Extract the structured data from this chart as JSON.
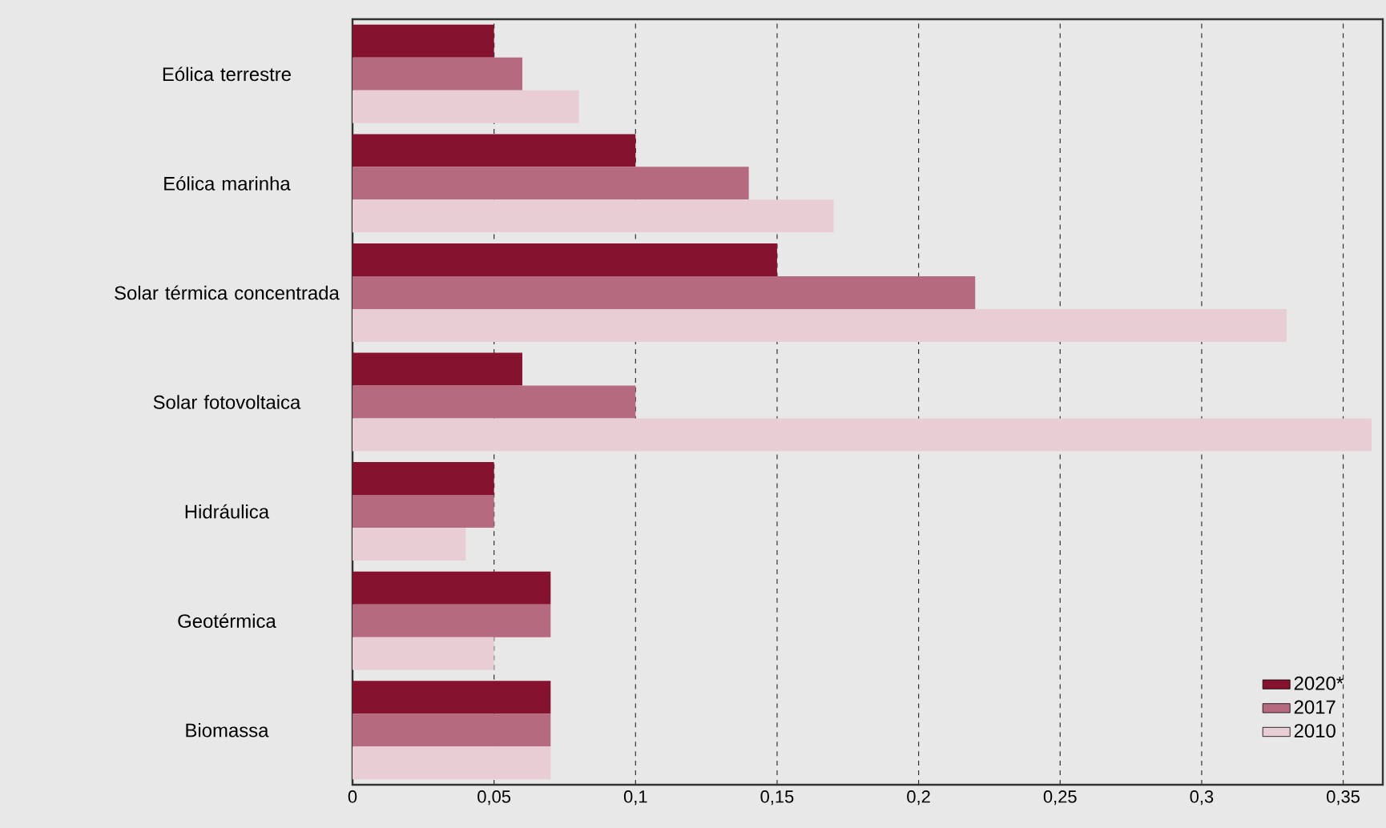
{
  "chart_data": {
    "type": "bar",
    "orientation": "horizontal",
    "categories": [
      "Eólica terrestre",
      "Eólica marinha",
      "Solar térmica concentrada",
      "Solar fotovoltaica",
      "Hidráulica",
      "Geotérmica",
      "Biomassa"
    ],
    "series": [
      {
        "name": "2020*",
        "color": "#85132f",
        "values": [
          0.05,
          0.1,
          0.15,
          0.06,
          0.05,
          0.07,
          0.07
        ]
      },
      {
        "name": "2017",
        "color": "#b56a7f",
        "values": [
          0.06,
          0.14,
          0.22,
          0.1,
          0.05,
          0.07,
          0.07
        ]
      },
      {
        "name": "2010",
        "color": "#e8cdd5",
        "values": [
          0.08,
          0.17,
          0.33,
          0.36,
          0.04,
          0.05,
          0.07
        ]
      }
    ],
    "xlim": [
      0,
      0.364
    ],
    "xticks": [
      0,
      {
        "value": 0.05,
        "label": "0,05"
      },
      {
        "value": 0.1,
        "label": "0,1"
      },
      {
        "value": 0.15,
        "label": "0,15"
      },
      {
        "value": 0.2,
        "label": "0,2"
      },
      {
        "value": 0.25,
        "label": "0,25"
      },
      {
        "value": 0.3,
        "label": "0,3"
      },
      {
        "value": 0.35,
        "label": "0,35"
      }
    ],
    "grid": "x",
    "legend": "bottom right"
  }
}
